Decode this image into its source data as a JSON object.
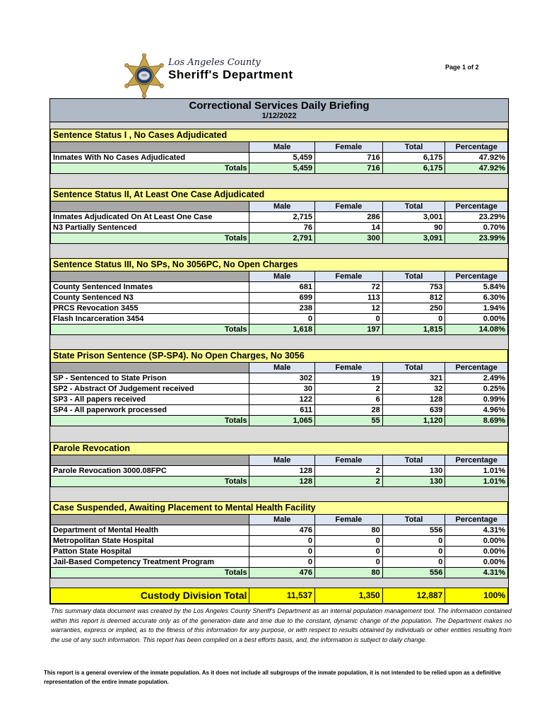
{
  "page": {
    "indicator": "Page 1 of 2"
  },
  "logo": {
    "county": "Los Angeles County",
    "department": "Sheriff's Department",
    "badge_icon": "sheriff-star-badge-icon"
  },
  "report": {
    "title": "Correctional Services Daily Briefing",
    "date": "1/12/2022"
  },
  "table": {
    "columns": [
      "Male",
      "Female",
      "Total",
      "Percentage"
    ],
    "totals_label": "Totals",
    "sections": [
      {
        "title": "Sentence Status I , No Cases Adjudicated",
        "rows": [
          {
            "label": "Inmates With No Cases Adjudicated",
            "male": "5,459",
            "female": "716",
            "total": "6,175",
            "percentage": "47.92%"
          }
        ],
        "totals": {
          "male": "5,459",
          "female": "716",
          "total": "6,175",
          "percentage": "47.92%"
        }
      },
      {
        "title": "Sentence Status II, At Least One Case Adjudicated",
        "rows": [
          {
            "label": "Inmates Adjudicated On At Least One Case",
            "male": "2,715",
            "female": "286",
            "total": "3,001",
            "percentage": "23.29%"
          },
          {
            "label": "N3 Partially Sentenced",
            "male": "76",
            "female": "14",
            "total": "90",
            "percentage": "0.70%"
          }
        ],
        "totals": {
          "male": "2,791",
          "female": "300",
          "total": "3,091",
          "percentage": "23.99%"
        }
      },
      {
        "title": "Sentence Status III, No SPs, No 3056PC, No Open Charges",
        "rows": [
          {
            "label": "County Sentenced Inmates",
            "male": "681",
            "female": "72",
            "total": "753",
            "percentage": "5.84%"
          },
          {
            "label": "County Sentenced N3",
            "male": "699",
            "female": "113",
            "total": "812",
            "percentage": "6.30%"
          },
          {
            "label": "PRCS Revocation 3455",
            "male": "238",
            "female": "12",
            "total": "250",
            "percentage": "1.94%"
          },
          {
            "label": "Flash Incarceration 3454",
            "male": "0",
            "female": "0",
            "total": "0",
            "percentage": "0.00%"
          }
        ],
        "totals": {
          "male": "1,618",
          "female": "197",
          "total": "1,815",
          "percentage": "14.08%"
        }
      },
      {
        "title": "State Prison Sentence (SP-SP4). No Open Charges, No 3056",
        "rows": [
          {
            "label": "SP - Sentenced to State Prison",
            "male": "302",
            "female": "19",
            "total": "321",
            "percentage": "2.49%"
          },
          {
            "label": "SP2 - Abstract Of Judgement received",
            "male": "30",
            "female": "2",
            "total": "32",
            "percentage": "0.25%"
          },
          {
            "label": "SP3 - All papers received",
            "male": "122",
            "female": "6",
            "total": "128",
            "percentage": "0.99%"
          },
          {
            "label": "SP4 - All paperwork processed",
            "male": "611",
            "female": "28",
            "total": "639",
            "percentage": "4.96%"
          }
        ],
        "totals": {
          "male": "1,065",
          "female": "55",
          "total": "1,120",
          "percentage": "8.69%"
        }
      },
      {
        "title": "Parole Revocation",
        "rows": [
          {
            "label": "Parole Revocation 3000.08FPC",
            "male": "128",
            "female": "2",
            "total": "130",
            "percentage": "1.01%"
          }
        ],
        "totals": {
          "male": "128",
          "female": "2",
          "total": "130",
          "percentage": "1.01%"
        }
      },
      {
        "title": "Case Suspended, Awaiting Placement to Mental Health Facility",
        "rows": [
          {
            "label": "Department of Mental Health",
            "male": "476",
            "female": "80",
            "total": "556",
            "percentage": "4.31%"
          },
          {
            "label": "Metropolitan State Hospital",
            "male": "0",
            "female": "0",
            "total": "0",
            "percentage": "0.00%"
          },
          {
            "label": "Patton State Hospital",
            "male": "0",
            "female": "0",
            "total": "0",
            "percentage": "0.00%"
          },
          {
            "label": "Jail-Based Competency Treatment Program",
            "male": "0",
            "female": "0",
            "total": "0",
            "percentage": "0.00%"
          }
        ],
        "totals": {
          "male": "476",
          "female": "80",
          "total": "556",
          "percentage": "4.31%"
        }
      }
    ],
    "grand_total": {
      "label": "Custody Division Total",
      "male": "11,537",
      "female": "1,350",
      "total": "12,887",
      "percentage": "100%"
    }
  },
  "footer": {
    "disclaimer": "This summary data document was created by the Los Angeles County Sheriff's Department as an internal population management tool.  The information contained within this report is deemed accurate only as of the generation date and time due to the constant, dynamic change of the population.  The Department makes no warranties, express or implied, as to the fitness of this information for any purpose, or with respect to results obtained by individuals or other entities resulting from the use of any such information.  This report has been compiled on a best efforts basis, and, the information is subject to daily change.",
    "note": "This report is a general overview of the inmate population.  As it does not include all subgroups of the inmate population, it is not intended to be relied upon as a definitive representation of the entire inmate population."
  },
  "colors": {
    "title-bar-bg": "#B0B9C6",
    "section-header-bg": "#FFFF99",
    "column-header-bg": "#DCE3F1",
    "totals-row-bg": "#D2F5D2",
    "spacer-bg": "#D9D9D9",
    "corner-cell-bg": "#A8A8A8",
    "grand-total-bg": "#FFFF00",
    "badge-gold": "#C9A448",
    "badge-navy": "#223A66"
  }
}
